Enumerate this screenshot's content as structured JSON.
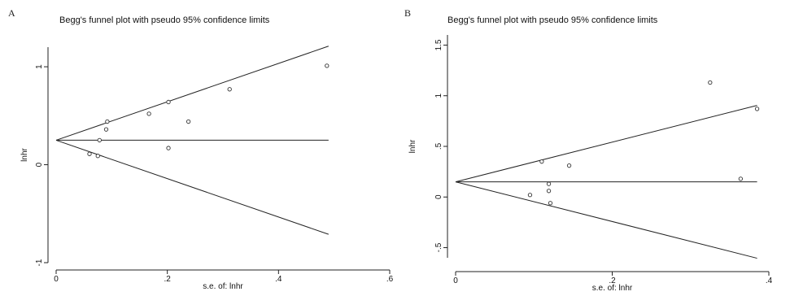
{
  "panels": [
    {
      "letter": "A",
      "chart_data": {
        "type": "scatter",
        "title": "Begg's funnel plot with pseudo 95% confidence limits",
        "xlabel": "s.e. of: lnhr",
        "ylabel": "lnhr",
        "xlim": [
          0,
          0.6
        ],
        "ylim": [
          -1,
          1.2
        ],
        "xticks": [
          0,
          0.2,
          0.4,
          0.6
        ],
        "xtick_labels": [
          "0",
          ".2",
          ".4",
          ".6"
        ],
        "yticks": [
          -1,
          0,
          1
        ],
        "ytick_labels": [
          "-1",
          "0",
          "1"
        ],
        "pooled_estimate": 0.25,
        "limit_se_max": 0.49,
        "points": [
          {
            "x": 0.06,
            "y": 0.11
          },
          {
            "x": 0.075,
            "y": 0.09
          },
          {
            "x": 0.078,
            "y": 0.25
          },
          {
            "x": 0.09,
            "y": 0.36
          },
          {
            "x": 0.092,
            "y": 0.44
          },
          {
            "x": 0.167,
            "y": 0.52
          },
          {
            "x": 0.202,
            "y": 0.64
          },
          {
            "x": 0.202,
            "y": 0.17
          },
          {
            "x": 0.238,
            "y": 0.44
          },
          {
            "x": 0.312,
            "y": 0.77
          },
          {
            "x": 0.487,
            "y": 1.01
          }
        ],
        "grid": false,
        "legend": "none"
      }
    },
    {
      "letter": "B",
      "chart_data": {
        "type": "scatter",
        "title": "Begg's funnel plot with pseudo 95% confidence limits",
        "xlabel": "s.e. of: lnhr",
        "ylabel": "lnhr",
        "xlim": [
          0,
          0.4
        ],
        "ylim": [
          -0.6,
          1.6
        ],
        "xticks": [
          0,
          0.2,
          0.4
        ],
        "xtick_labels": [
          "0",
          ".2",
          ".4"
        ],
        "yticks": [
          -0.5,
          0,
          0.5,
          1,
          1.5
        ],
        "ytick_labels": [
          "-.5",
          "0",
          ".5",
          "1",
          "1.5"
        ],
        "pooled_estimate": 0.15,
        "limit_se_max": 0.385,
        "points": [
          {
            "x": 0.095,
            "y": 0.02
          },
          {
            "x": 0.11,
            "y": 0.35
          },
          {
            "x": 0.119,
            "y": 0.13
          },
          {
            "x": 0.119,
            "y": 0.06
          },
          {
            "x": 0.121,
            "y": -0.06
          },
          {
            "x": 0.145,
            "y": 0.31
          },
          {
            "x": 0.325,
            "y": 1.13
          },
          {
            "x": 0.364,
            "y": 0.18
          },
          {
            "x": 0.385,
            "y": 0.87
          }
        ],
        "grid": false,
        "legend": "none"
      }
    }
  ]
}
